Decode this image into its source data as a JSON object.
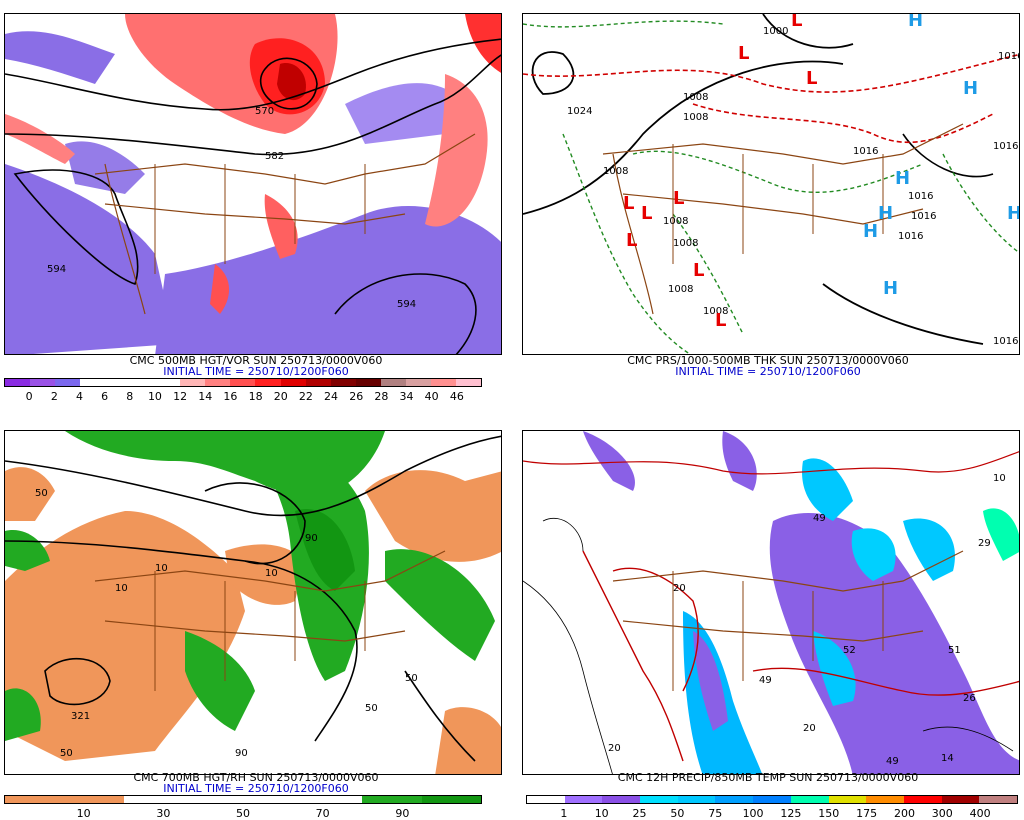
{
  "panels": [
    {
      "title": "CMC 500MB HGT/VOR SUN 250713/0000V060",
      "initial": "INITIAL TIME = 250710/1200F060",
      "colors": [
        "#8a2be2",
        "#9a52e6",
        "#7b68ee",
        "#ffffff",
        "#ffffff",
        "#ffffff",
        "#ffffff",
        "#ffb6b6",
        "#ff8080",
        "#ff5050",
        "#ff2020",
        "#e00000",
        "#b00000",
        "#800000",
        "#660000",
        "#b08080",
        "#d8a0a0",
        "#ff9090",
        "#ffc0d0"
      ],
      "ticks": [
        "0",
        "2",
        "4",
        "6",
        "8",
        "10",
        "12",
        "14",
        "16",
        "18",
        "20",
        "22",
        "24",
        "26",
        "28",
        "34",
        "40",
        "46"
      ],
      "contours": [
        "570",
        "582",
        "594",
        "594"
      ]
    },
    {
      "title": "CMC PRS/1000-500MB THK SUN 250713/0000V060",
      "initial": "INITIAL TIME = 250710/1200F060",
      "pressure_labels": [
        "1000",
        "1024",
        "1016",
        "1008",
        "1008",
        "1008",
        "1008",
        "1008",
        "1008",
        "1008",
        "1016",
        "1016",
        "1016",
        "1016",
        "1016",
        "1016"
      ],
      "highs": [
        "H",
        "H",
        "H",
        "H",
        "H",
        "H",
        "H"
      ],
      "lows": [
        "L",
        "L",
        "L",
        "L",
        "L",
        "L",
        "L",
        "L",
        "L"
      ]
    },
    {
      "title": "CMC 700MB HGT/RH SUN 250713/0000V060",
      "initial": "INITIAL TIME = 250710/1200F060",
      "colors": [
        "#f0965a",
        "#f0965a",
        "#ffffff",
        "#ffffff",
        "#ffffff",
        "#ffffff",
        "#22aa22",
        "#129612"
      ],
      "ticks": [
        "10",
        "30",
        "50",
        "70",
        "90"
      ],
      "contours": [
        "321",
        "10",
        "10",
        "10",
        "50",
        "50",
        "50",
        "50",
        "90",
        "90"
      ]
    },
    {
      "title": "CMC 12H PRECIP/850MB TEMP SUN 250713/0000V060",
      "colors": [
        "#ffffff",
        "#a070ff",
        "#8a50e6",
        "#00e0ff",
        "#00c8ff",
        "#00a0ff",
        "#0080ff",
        "#00ffb0",
        "#e0e000",
        "#ff8c00",
        "#ff0000",
        "#a00000",
        "#c08080"
      ],
      "ticks": [
        "1",
        "10",
        "25",
        "50",
        "75",
        "100",
        "125",
        "150",
        "175",
        "200",
        "300",
        "400"
      ],
      "temp_labels": [
        "20",
        "20",
        "20",
        "49",
        "49",
        "52",
        "51",
        "49",
        "29",
        "26",
        "14",
        "10"
      ]
    }
  ]
}
